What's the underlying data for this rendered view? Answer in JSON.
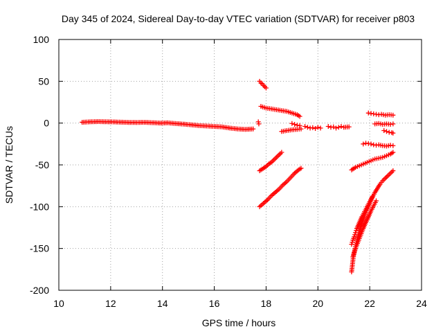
{
  "chart_data": {
    "type": "scatter",
    "title": "Day 345 of 2024, Sidereal Day-to-day VTEC variation (SDTVAR) for receiver p803",
    "xlabel": "GPS time / hours",
    "ylabel": "SDTVAR / TECUs",
    "xlim": [
      10,
      24
    ],
    "ylim": [
      -200,
      100
    ],
    "xticks": [
      10,
      12,
      14,
      16,
      18,
      20,
      22,
      24
    ],
    "yticks": [
      -200,
      -150,
      -100,
      -50,
      0,
      50,
      100
    ],
    "grid": true,
    "marker": "plus",
    "color": "#ff0000",
    "series": [
      {
        "points": [
          [
            10.9,
            1
          ],
          [
            11.2,
            1.5
          ],
          [
            11.5,
            1.8
          ],
          [
            11.8,
            1.6
          ],
          [
            12.1,
            1.4
          ],
          [
            12.4,
            1.1
          ],
          [
            12.7,
            0.8
          ],
          [
            13.0,
            0.7
          ],
          [
            13.3,
            0.9
          ],
          [
            13.6,
            0.5
          ],
          [
            13.9,
            0
          ],
          [
            14.2,
            0.3
          ],
          [
            14.5,
            -0.5
          ],
          [
            14.8,
            -1.2
          ],
          [
            15.1,
            -2
          ],
          [
            15.4,
            -3
          ],
          [
            15.7,
            -3.5
          ],
          [
            16.0,
            -4
          ],
          [
            16.3,
            -4.5
          ],
          [
            16.6,
            -6
          ],
          [
            16.9,
            -7
          ],
          [
            17.2,
            -7.5
          ],
          [
            17.5,
            -7
          ]
        ]
      },
      {
        "points": [
          [
            17.7,
            1.5
          ],
          [
            17.72,
            -1
          ]
        ]
      },
      {
        "points": [
          [
            17.75,
            50
          ],
          [
            17.8,
            48
          ],
          [
            17.85,
            47
          ],
          [
            17.9,
            45
          ],
          [
            17.95,
            43.5
          ],
          [
            18.0,
            42
          ]
        ]
      },
      {
        "points": [
          [
            17.8,
            20
          ],
          [
            18.0,
            18
          ],
          [
            18.2,
            17
          ],
          [
            18.4,
            16
          ],
          [
            18.6,
            15
          ],
          [
            18.8,
            14
          ],
          [
            19.0,
            12
          ],
          [
            19.2,
            10
          ],
          [
            19.3,
            8
          ]
        ]
      },
      {
        "points": [
          [
            17.75,
            -57
          ],
          [
            17.9,
            -54
          ],
          [
            18.0,
            -52
          ],
          [
            18.1,
            -49
          ],
          [
            18.2,
            -47
          ],
          [
            18.3,
            -44
          ],
          [
            18.4,
            -41
          ],
          [
            18.5,
            -38
          ],
          [
            18.6,
            -35
          ]
        ]
      },
      {
        "points": [
          [
            17.75,
            -100
          ],
          [
            17.9,
            -96
          ],
          [
            18.05,
            -92
          ],
          [
            18.2,
            -87
          ],
          [
            18.35,
            -83
          ],
          [
            18.5,
            -79
          ],
          [
            18.65,
            -74
          ],
          [
            18.8,
            -70
          ],
          [
            18.95,
            -65
          ],
          [
            19.1,
            -60
          ],
          [
            19.25,
            -56
          ],
          [
            19.35,
            -54
          ]
        ]
      },
      {
        "points": [
          [
            19.0,
            -0.5
          ],
          [
            19.1,
            -1.5
          ],
          [
            19.2,
            -2.5
          ],
          [
            19.3,
            -3
          ]
        ]
      },
      {
        "points": [
          [
            18.6,
            -10
          ],
          [
            18.8,
            -9
          ],
          [
            19.0,
            -8
          ],
          [
            19.2,
            -7.5
          ],
          [
            19.35,
            -7
          ]
        ]
      },
      {
        "points": [
          [
            19.5,
            -4
          ],
          [
            19.6,
            -5
          ],
          [
            19.7,
            -6
          ],
          [
            19.8,
            -5.5
          ],
          [
            19.9,
            -6.5
          ],
          [
            20.0,
            -5
          ],
          [
            20.1,
            -6
          ]
        ]
      },
      {
        "points": [
          [
            20.4,
            -4
          ],
          [
            20.5,
            -5
          ],
          [
            20.6,
            -4.5
          ],
          [
            20.7,
            -6
          ],
          [
            20.8,
            -5
          ],
          [
            20.9,
            -4
          ],
          [
            21.0,
            -5
          ],
          [
            21.2,
            -4.5
          ]
        ]
      },
      {
        "points": [
          [
            21.3,
            -56
          ],
          [
            21.45,
            -53
          ],
          [
            21.6,
            -51
          ],
          [
            21.75,
            -49
          ],
          [
            21.9,
            -47
          ],
          [
            22.05,
            -45
          ],
          [
            22.2,
            -43
          ],
          [
            22.35,
            -42
          ],
          [
            22.5,
            -41
          ],
          [
            22.65,
            -39
          ],
          [
            22.8,
            -37
          ],
          [
            22.9,
            -35
          ]
        ]
      },
      {
        "points": [
          [
            21.3,
            -178
          ],
          [
            21.33,
            -170
          ],
          [
            21.36,
            -162
          ],
          [
            21.4,
            -155
          ],
          [
            21.45,
            -148
          ],
          [
            21.5,
            -141
          ],
          [
            21.55,
            -135
          ],
          [
            21.6,
            -129
          ],
          [
            21.7,
            -120
          ],
          [
            21.8,
            -111
          ],
          [
            21.9,
            -103
          ],
          [
            22.0,
            -96
          ],
          [
            22.1,
            -89
          ],
          [
            22.2,
            -83
          ],
          [
            22.3,
            -78
          ],
          [
            22.4,
            -73
          ],
          [
            22.5,
            -69
          ],
          [
            22.6,
            -66
          ],
          [
            22.7,
            -63
          ],
          [
            22.8,
            -60
          ],
          [
            22.9,
            -57
          ]
        ]
      },
      {
        "points": [
          [
            21.3,
            -145
          ],
          [
            21.35,
            -140
          ],
          [
            21.4,
            -136
          ],
          [
            21.45,
            -131
          ],
          [
            21.5,
            -126
          ],
          [
            21.6,
            -119
          ],
          [
            21.7,
            -112
          ],
          [
            21.8,
            -106
          ],
          [
            21.9,
            -100
          ],
          [
            22.0,
            -94
          ],
          [
            22.1,
            -88
          ]
        ]
      },
      {
        "points": [
          [
            21.35,
            -160
          ],
          [
            21.45,
            -150
          ],
          [
            21.55,
            -142
          ],
          [
            21.65,
            -134
          ],
          [
            21.75,
            -126
          ],
          [
            21.85,
            -119
          ],
          [
            21.95,
            -112
          ],
          [
            22.05,
            -105
          ],
          [
            22.15,
            -99
          ],
          [
            22.25,
            -93
          ]
        ]
      },
      {
        "points": [
          [
            21.75,
            -25
          ],
          [
            21.85,
            -24
          ],
          [
            21.95,
            -24.5
          ],
          [
            22.05,
            -25
          ],
          [
            22.15,
            -26
          ],
          [
            22.25,
            -26.5
          ],
          [
            22.35,
            -26
          ],
          [
            22.5,
            -27
          ],
          [
            22.65,
            -27.5
          ],
          [
            22.8,
            -26.5
          ],
          [
            22.9,
            -27
          ]
        ]
      },
      {
        "points": [
          [
            21.95,
            12
          ],
          [
            22.05,
            11.5
          ],
          [
            22.15,
            11
          ],
          [
            22.25,
            10.5
          ],
          [
            22.35,
            10
          ],
          [
            22.45,
            10.5
          ],
          [
            22.6,
            9.5
          ],
          [
            22.75,
            10
          ],
          [
            22.9,
            9.5
          ]
        ]
      },
      {
        "points": [
          [
            22.2,
            -1
          ],
          [
            22.35,
            -0.5
          ],
          [
            22.5,
            -1.5
          ],
          [
            22.65,
            -1
          ],
          [
            22.8,
            -1.5
          ],
          [
            22.9,
            -1
          ]
        ]
      },
      {
        "points": [
          [
            22.55,
            -9
          ],
          [
            22.65,
            -10
          ],
          [
            22.75,
            -11
          ],
          [
            22.85,
            -11.5
          ],
          [
            22.9,
            -12
          ]
        ]
      }
    ]
  }
}
